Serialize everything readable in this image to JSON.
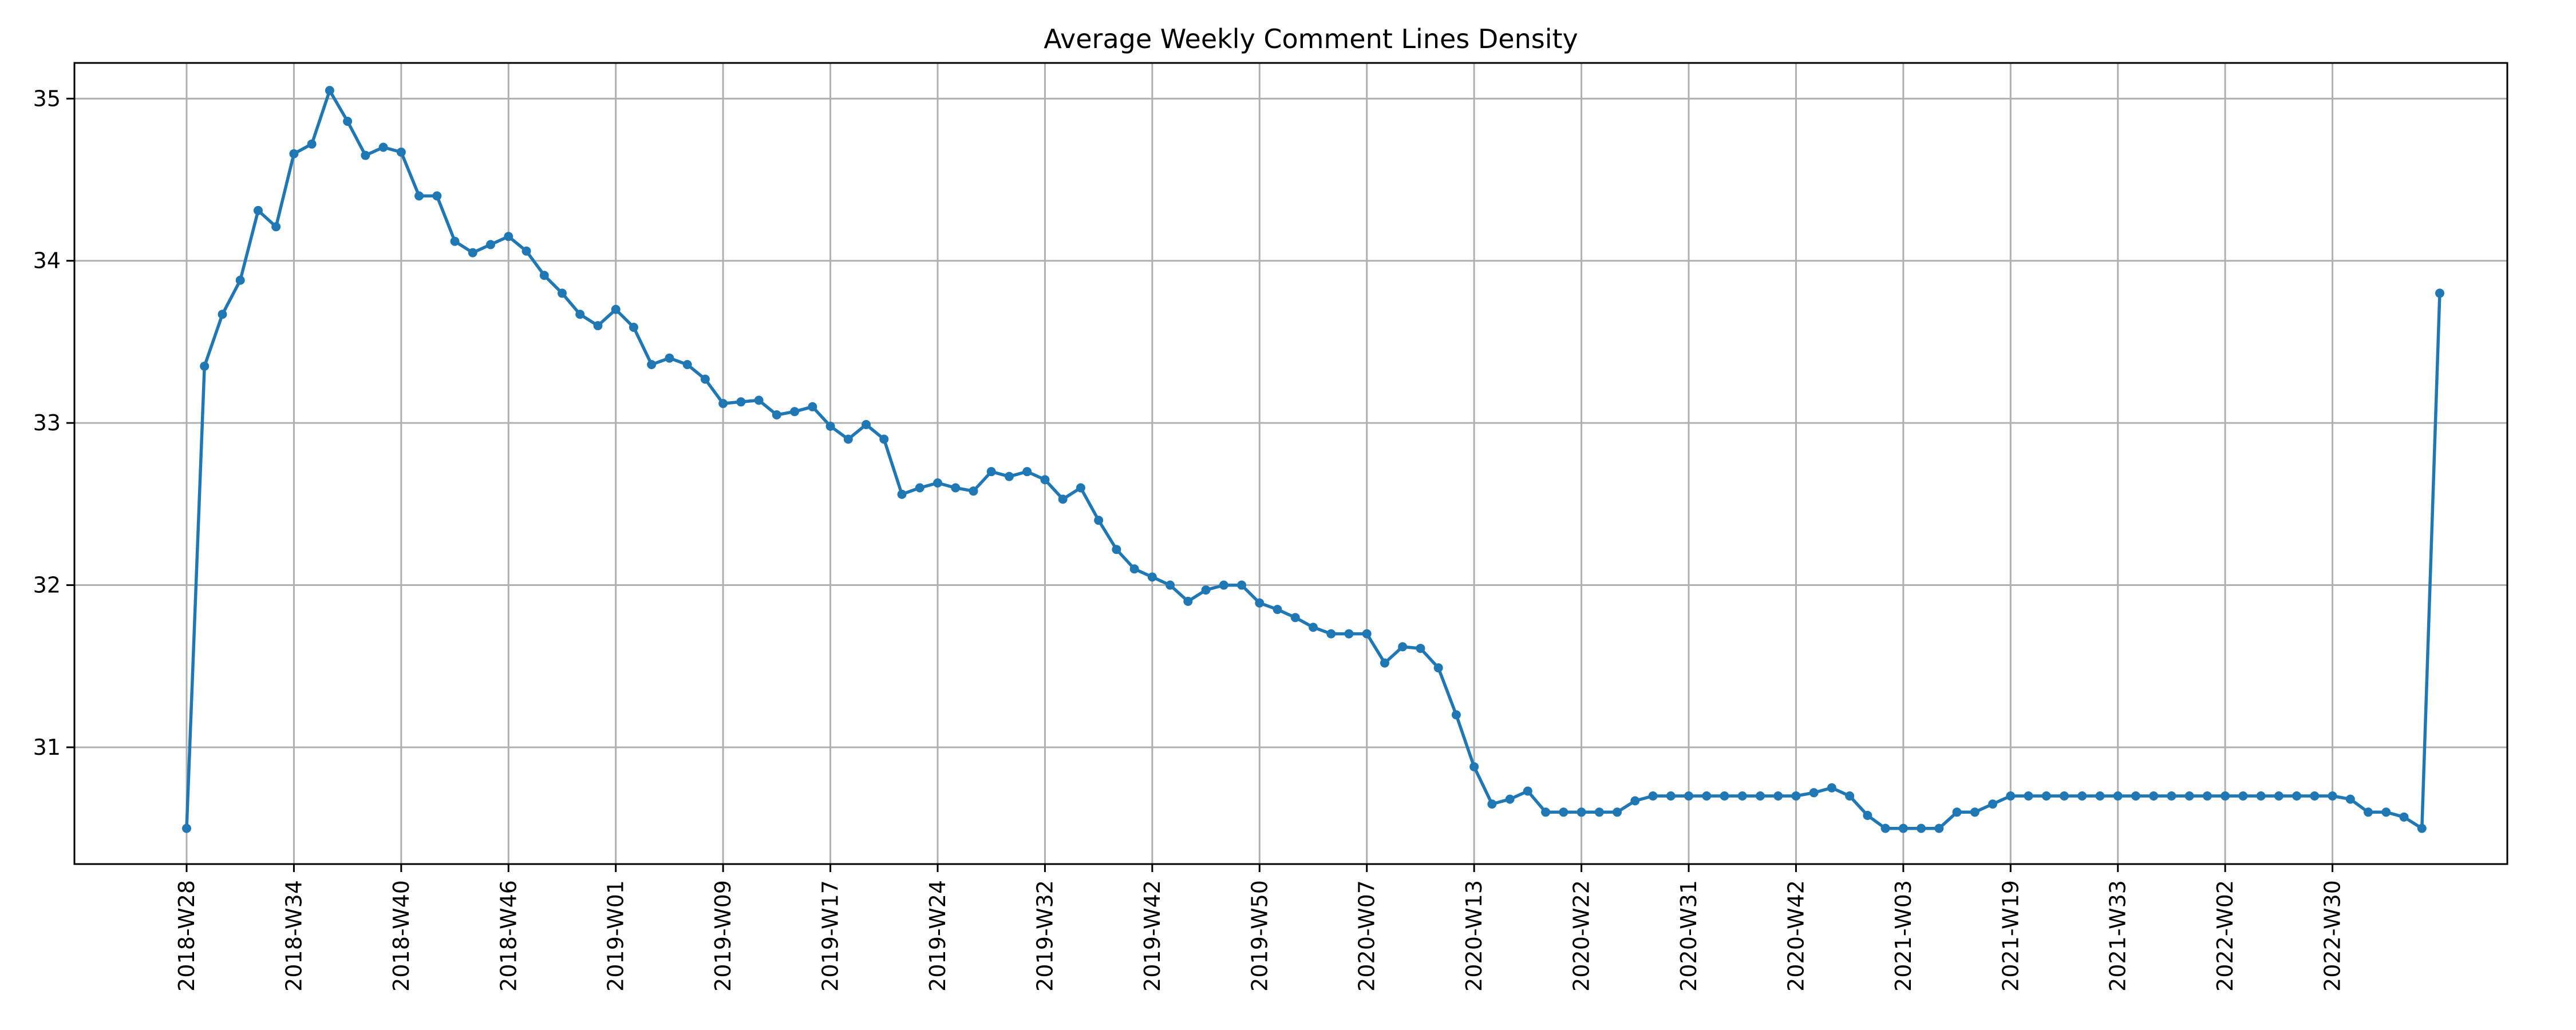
{
  "chart_data": {
    "type": "line",
    "title": "Average Weekly Comment Lines Density",
    "xlabel": "",
    "ylabel": "",
    "grid": true,
    "ylim": [
      30.28,
      35.22
    ],
    "y_ticks": [
      31,
      32,
      33,
      34,
      35
    ],
    "x_tick_labels": [
      {
        "index": 0,
        "label": "2018-W28"
      },
      {
        "index": 6,
        "label": "2018-W34"
      },
      {
        "index": 12,
        "label": "2018-W40"
      },
      {
        "index": 18,
        "label": "2018-W46"
      },
      {
        "index": 24,
        "label": "2019-W01"
      },
      {
        "index": 30,
        "label": "2019-W09"
      },
      {
        "index": 36,
        "label": "2019-W17"
      },
      {
        "index": 42,
        "label": "2019-W24"
      },
      {
        "index": 48,
        "label": "2019-W32"
      },
      {
        "index": 54,
        "label": "2019-W42"
      },
      {
        "index": 60,
        "label": "2019-W50"
      },
      {
        "index": 66,
        "label": "2020-W07"
      },
      {
        "index": 72,
        "label": "2020-W13"
      },
      {
        "index": 78,
        "label": "2020-W22"
      },
      {
        "index": 84,
        "label": "2020-W31"
      },
      {
        "index": 90,
        "label": "2020-W42"
      },
      {
        "index": 96,
        "label": "2021-W03"
      },
      {
        "index": 102,
        "label": "2021-W19"
      },
      {
        "index": 108,
        "label": "2021-W33"
      },
      {
        "index": 114,
        "label": "2022-W02"
      },
      {
        "index": 120,
        "label": "2022-W30"
      }
    ],
    "series": [
      {
        "color": "#1f77b4",
        "values": [
          30.5,
          33.35,
          33.67,
          33.88,
          34.31,
          34.21,
          34.66,
          34.72,
          35.05,
          34.86,
          34.65,
          34.7,
          34.67,
          34.4,
          34.4,
          34.12,
          34.05,
          34.1,
          34.15,
          34.06,
          33.91,
          33.8,
          33.67,
          33.6,
          33.7,
          33.59,
          33.36,
          33.4,
          33.36,
          33.27,
          33.12,
          33.13,
          33.14,
          33.05,
          33.07,
          33.1,
          32.98,
          32.9,
          32.99,
          32.9,
          32.56,
          32.6,
          32.63,
          32.6,
          32.58,
          32.7,
          32.67,
          32.7,
          32.65,
          32.53,
          32.6,
          32.4,
          32.22,
          32.1,
          32.05,
          32.0,
          31.9,
          31.97,
          32.0,
          32.0,
          31.89,
          31.85,
          31.8,
          31.74,
          31.7,
          31.7,
          31.7,
          31.52,
          31.62,
          31.61,
          31.49,
          31.2,
          30.88,
          30.65,
          30.68,
          30.73,
          30.6,
          30.6,
          30.6,
          30.6,
          30.6,
          30.67,
          30.7,
          30.7,
          30.7,
          30.7,
          30.7,
          30.7,
          30.7,
          30.7,
          30.7,
          30.72,
          30.75,
          30.7,
          30.58,
          30.5,
          30.5,
          30.5,
          30.5,
          30.6,
          30.6,
          30.65,
          30.7,
          30.7,
          30.7,
          30.7,
          30.7,
          30.7,
          30.7,
          30.7,
          30.7,
          30.7,
          30.7,
          30.7,
          30.7,
          30.7,
          30.7,
          30.7,
          30.7,
          30.7,
          30.7,
          30.68,
          30.6,
          30.6,
          30.57,
          30.5,
          33.8
        ]
      }
    ]
  }
}
